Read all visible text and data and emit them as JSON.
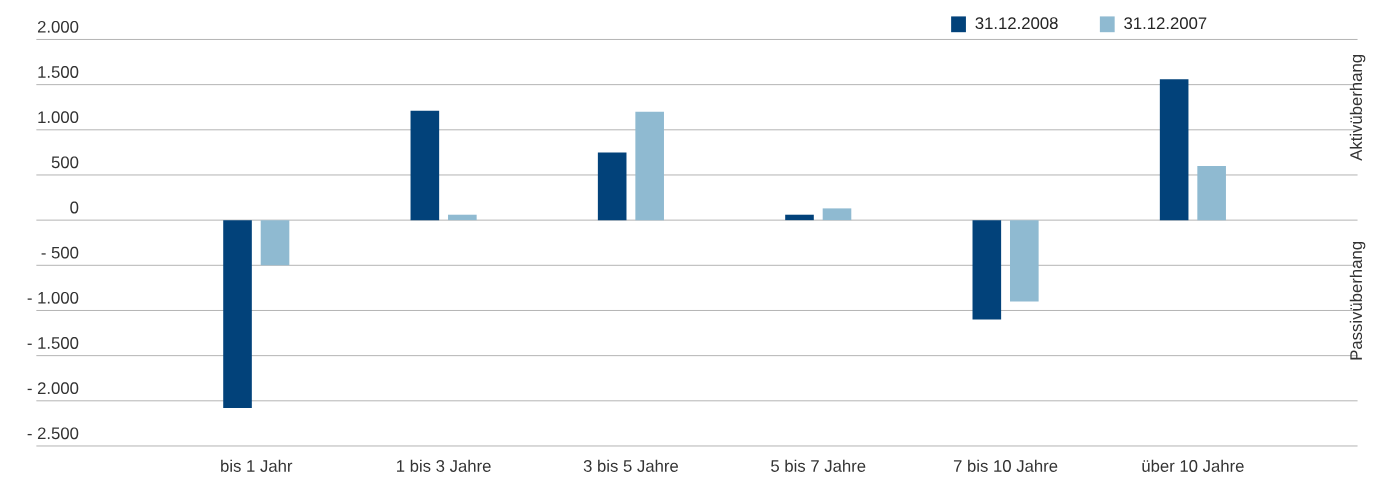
{
  "chart_data": {
    "type": "bar",
    "categories": [
      "bis 1 Jahr",
      "1 bis 3 Jahre",
      "3 bis 5 Jahre",
      "5 bis 7 Jahre",
      "7 bis 10 Jahre",
      "über 10 Jahre"
    ],
    "series": [
      {
        "name": "31.12.2008",
        "color": "#02427a",
        "values": [
          -2080,
          1210,
          750,
          60,
          -1100,
          1560
        ]
      },
      {
        "name": "31.12.2007",
        "color": "#8fbad1",
        "values": [
          -500,
          60,
          1200,
          130,
          -900,
          600
        ]
      }
    ],
    "ylim": [
      -2500,
      2000
    ],
    "yticks": [
      {
        "value": -2500,
        "label": "- 2.500"
      },
      {
        "value": -2000,
        "label": "- 2.000"
      },
      {
        "value": -1500,
        "label": "- 1.500"
      },
      {
        "value": -1000,
        "label": "- 1.000"
      },
      {
        "value": -500,
        "label": "- 500"
      },
      0,
      {
        "value": 500,
        "label": "500"
      },
      {
        "value": 1000,
        "label": "1.000"
      },
      {
        "value": 1500,
        "label": "1.500"
      },
      {
        "value": 2000,
        "label": "2.000"
      }
    ],
    "annotations": [
      "Aktivüberhang",
      "Passivüberhang"
    ],
    "grid": "y",
    "legend": "top right"
  }
}
